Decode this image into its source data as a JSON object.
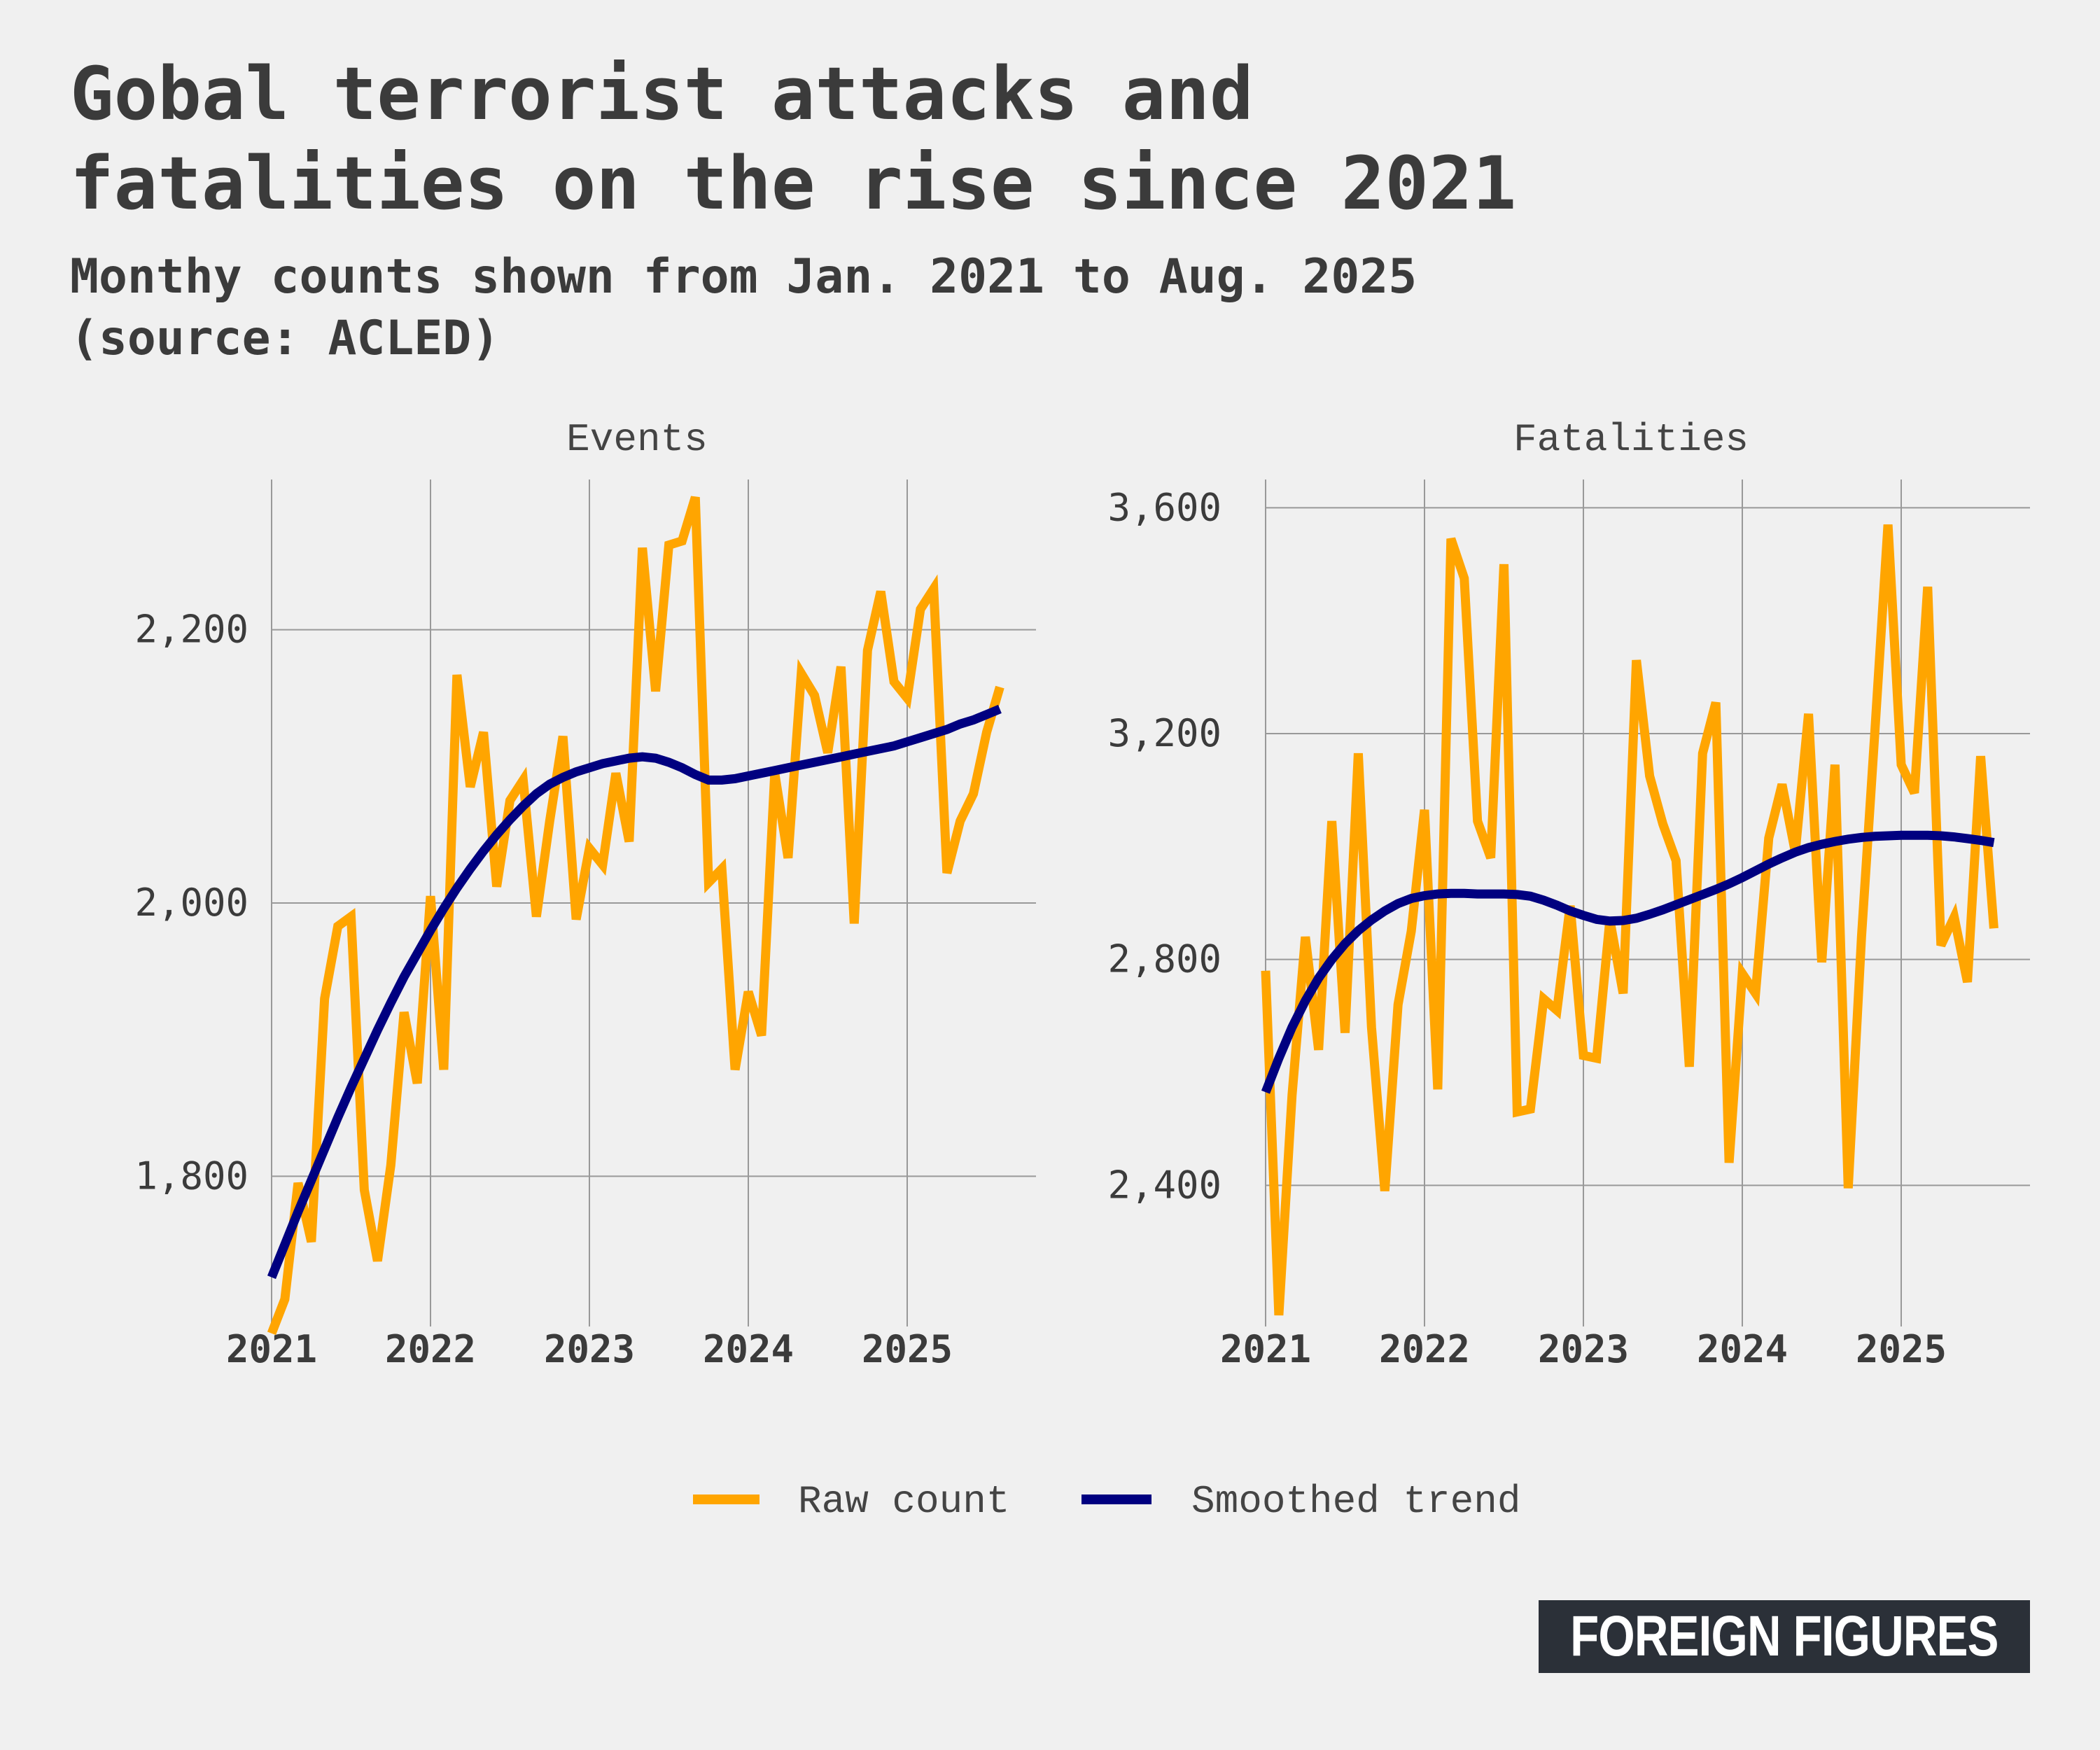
{
  "title": {
    "line1": "Gobal terrorist attacks and",
    "line2": "fatalities on the rise since 2021"
  },
  "subtitle": {
    "line1": "Monthy counts shown from Jan. 2021 to Aug. 2025",
    "line2": "(source: ACLED)"
  },
  "logo": "FOREIGN FIGURES",
  "colors": {
    "raw": "#FFA500",
    "trend": "#000080",
    "grid": "#999999",
    "text": "#3b3b3b",
    "background": "#f0f0f0"
  },
  "chart_data": {
    "type": "line",
    "legend": {
      "position": "bottom",
      "entries": [
        "Raw count",
        "Smoothed trend"
      ]
    },
    "panels": [
      {
        "name": "Events",
        "x_start": "2021-01",
        "x_end": "2025-08",
        "xticks": [
          "2021",
          "2022",
          "2023",
          "2024",
          "2025"
        ],
        "ylim": [
          1690,
          2310
        ],
        "yticks": [
          1800,
          2000,
          2200
        ],
        "yticklabels": [
          "1,800",
          "2,000",
          "2,200"
        ],
        "grid": true,
        "series": [
          {
            "name": "Raw count",
            "values": [
              1685,
              1710,
              1795,
              1752,
              1930,
              1983,
              1990,
              1790,
              1738,
              1808,
              1920,
              1868,
              2005,
              1878,
              2167,
              2085,
              2125,
              2012,
              2075,
              2090,
              1990,
              2060,
              2122,
              1988,
              2040,
              2028,
              2095,
              2045,
              2260,
              2155,
              2262,
              2265,
              2297,
              2015,
              2025,
              1878,
              1935,
              1903,
              2095,
              2033,
              2168,
              2152,
              2110,
              2173,
              1985,
              2185,
              2228,
              2162,
              2150,
              2215,
              2230,
              2022,
              2060,
              2080,
              2125,
              2158
            ]
          },
          {
            "name": "Smoothed trend",
            "values": [
              1726,
              1750,
              1774,
              1797,
              1820,
              1843,
              1865,
              1886,
              1907,
              1927,
              1946,
              1963,
              1980,
              1996,
              2011,
              2025,
              2038,
              2050,
              2061,
              2071,
              2080,
              2087,
              2092,
              2096,
              2099,
              2102,
              2104,
              2106,
              2107,
              2106,
              2103,
              2099,
              2094,
              2090,
              2090,
              2091,
              2093,
              2095,
              2097,
              2099,
              2101,
              2103,
              2105,
              2107,
              2109,
              2111,
              2113,
              2115,
              2118,
              2121,
              2124,
              2127,
              2131,
              2134,
              2138,
              2142
            ]
          }
        ]
      },
      {
        "name": "Fatalities",
        "x_start": "2021-01",
        "x_end": "2025-08",
        "xticks": [
          "2021",
          "2022",
          "2023",
          "2024",
          "2025"
        ],
        "ylim": [
          2150,
          3650
        ],
        "yticks": [
          2400,
          2800,
          3200,
          3600
        ],
        "yticklabels": [
          "2,400",
          "2,800",
          "3,200",
          "3,600"
        ],
        "grid": true,
        "series": [
          {
            "name": "Raw count",
            "values": [
              2780,
              2170,
              2560,
              2840,
              2640,
              3045,
              2670,
              3165,
              2680,
              2390,
              2720,
              2850,
              3065,
              2570,
              3545,
              3475,
              3045,
              2980,
              3500,
              2530,
              2535,
              2730,
              2710,
              2895,
              2630,
              2625,
              2870,
              2740,
              3330,
              3125,
              3040,
              2975,
              2610,
              3165,
              3255,
              2440,
              2775,
              2740,
              3015,
              3110,
              2990,
              3235,
              2795,
              3145,
              2395,
              2840,
              3200,
              3570,
              3145,
              3095,
              3460,
              2825,
              2875,
              2760,
              3160,
              2855
            ]
          },
          {
            "name": "Smoothed trend",
            "values": [
              2565,
              2625,
              2680,
              2727,
              2767,
              2800,
              2828,
              2851,
              2870,
              2886,
              2899,
              2908,
              2913,
              2916,
              2917,
              2917,
              2916,
              2916,
              2916,
              2915,
              2912,
              2905,
              2896,
              2886,
              2878,
              2871,
              2868,
              2869,
              2873,
              2880,
              2888,
              2897,
              2906,
              2915,
              2924,
              2934,
              2945,
              2957,
              2969,
              2980,
              2990,
              2998,
              3004,
              3009,
              3013,
              3016,
              3018,
              3019,
              3020,
              3020,
              3020,
              3019,
              3017,
              3014,
              3011,
              3007
            ]
          }
        ]
      }
    ]
  }
}
